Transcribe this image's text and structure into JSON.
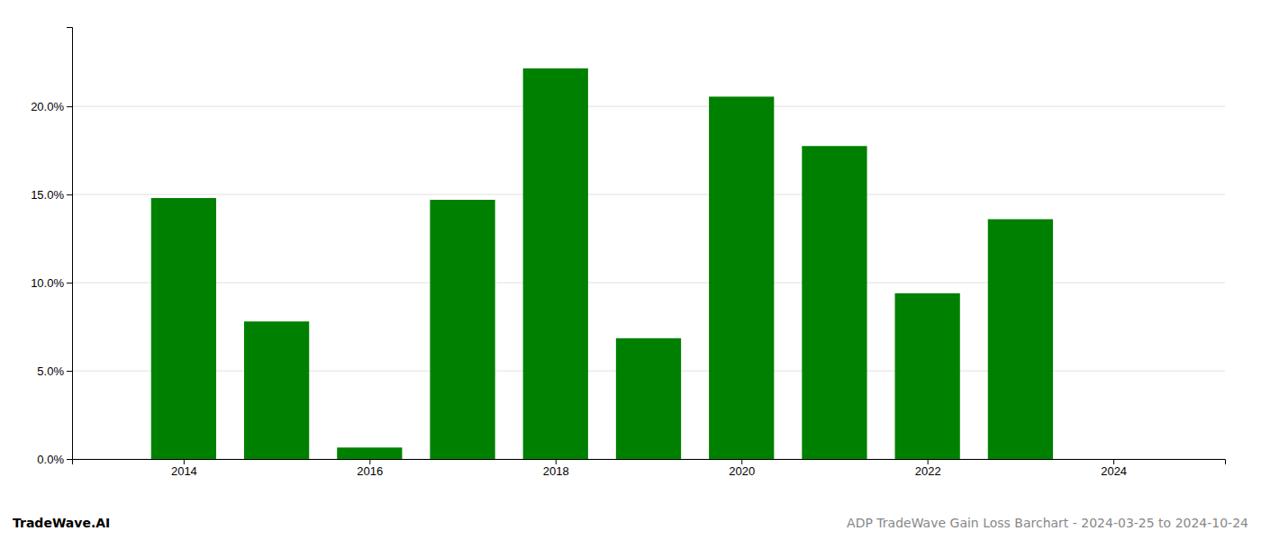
{
  "chart_data": {
    "type": "bar",
    "x": [
      2014,
      2015,
      2016,
      2017,
      2018,
      2019,
      2020,
      2021,
      2022,
      2023
    ],
    "values": [
      0.148,
      0.078,
      0.0065,
      0.147,
      0.2215,
      0.0685,
      0.2055,
      0.1775,
      0.094,
      0.136
    ],
    "color": "#008000",
    "xlim": [
      2012.8,
      2025.2
    ],
    "xticks": [
      2014,
      2016,
      2018,
      2020,
      2022,
      2024
    ],
    "ylim": [
      0,
      0.245
    ],
    "yticks": [
      {
        "value": 0.0,
        "label": "0.0%"
      },
      {
        "value": 0.05,
        "label": "5.0%"
      },
      {
        "value": 0.1,
        "label": "10.0%"
      },
      {
        "value": 0.15,
        "label": "15.0%"
      },
      {
        "value": 0.2,
        "label": "20.0%"
      }
    ],
    "grid": true,
    "annotations": [
      "TradeWave.AI",
      "ADP TradeWave Gain Loss Barchart - 2024-03-25 to 2024-10-24"
    ]
  }
}
